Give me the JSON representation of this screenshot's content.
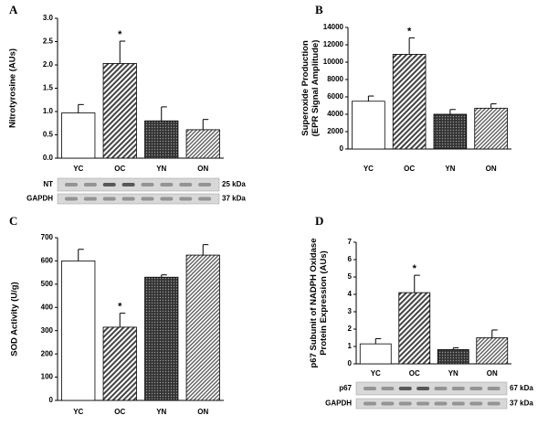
{
  "chart_data": [
    {
      "type": "bar",
      "panel": "A",
      "ylabel": [
        "Nitrotyrosine (AUs)"
      ],
      "categories": [
        "YC",
        "OC",
        "YN",
        "ON"
      ],
      "values": [
        0.97,
        2.03,
        0.8,
        0.61
      ],
      "errors": [
        0.18,
        0.48,
        0.3,
        0.22
      ],
      "patterns": [
        "none",
        "diagonal",
        "crosshatch",
        "diagonal-fine"
      ],
      "ylim": [
        0,
        3
      ],
      "yticks": [
        {
          "value": 0,
          "label": "0.0"
        },
        0.5,
        {
          "value": 1,
          "label": "1.0"
        },
        1.5,
        {
          "value": 2,
          "label": "2.0"
        },
        2.5,
        {
          "value": 3,
          "label": "3.0"
        }
      ],
      "annotations": [
        {
          "text": "*",
          "category": "OC"
        }
      ],
      "blot": [
        {
          "name": "NT",
          "size": "25 kDa"
        },
        {
          "name": "GAPDH",
          "size": "37 kDa"
        }
      ]
    },
    {
      "type": "bar",
      "panel": "B",
      "ylabel": [
        "Superoxide Production",
        "(EPR Signal Amplitude)"
      ],
      "categories": [
        "YC",
        "OC",
        "YN",
        "ON"
      ],
      "values": [
        5500,
        10900,
        4000,
        4700
      ],
      "errors": [
        600,
        1900,
        550,
        500
      ],
      "patterns": [
        "none",
        "diagonal",
        "crosshatch",
        "diagonal-fine"
      ],
      "ylim": [
        0,
        14000
      ],
      "yticks": [
        0,
        2000,
        4000,
        6000,
        8000,
        10000,
        12000,
        14000
      ],
      "annotations": [
        {
          "text": "*",
          "category": "OC"
        }
      ]
    },
    {
      "type": "bar",
      "panel": "C",
      "ylabel": [
        "SOD Activity (U/g)"
      ],
      "categories": [
        "YC",
        "OC",
        "YN",
        "ON"
      ],
      "values": [
        600,
        315,
        530,
        625
      ],
      "errors": [
        50,
        60,
        10,
        45
      ],
      "patterns": [
        "none",
        "diagonal",
        "crosshatch",
        "diagonal-fine"
      ],
      "ylim": [
        0,
        700
      ],
      "yticks": [
        0,
        100,
        200,
        300,
        400,
        500,
        600,
        700
      ],
      "annotations": [
        {
          "text": "*",
          "category": "OC"
        }
      ]
    },
    {
      "type": "bar",
      "panel": "D",
      "ylabel": [
        "p67 Subunit of NADPH Oxidase",
        "Protein Expression (AUs)"
      ],
      "categories": [
        "YC",
        "OC",
        "YN",
        "ON"
      ],
      "values": [
        1.15,
        4.1,
        0.82,
        1.5
      ],
      "errors": [
        0.3,
        1.0,
        0.1,
        0.45
      ],
      "patterns": [
        "none",
        "diagonal",
        "crosshatch",
        "diagonal-fine"
      ],
      "ylim": [
        0,
        7
      ],
      "yticks": [
        0,
        1,
        2,
        3,
        4,
        5,
        6,
        7
      ],
      "annotations": [
        {
          "text": "*",
          "category": "OC"
        }
      ],
      "blot": [
        {
          "name": "p67",
          "size": "67 kDa"
        },
        {
          "name": "GAPDH",
          "size": "37 kDa"
        }
      ]
    }
  ]
}
